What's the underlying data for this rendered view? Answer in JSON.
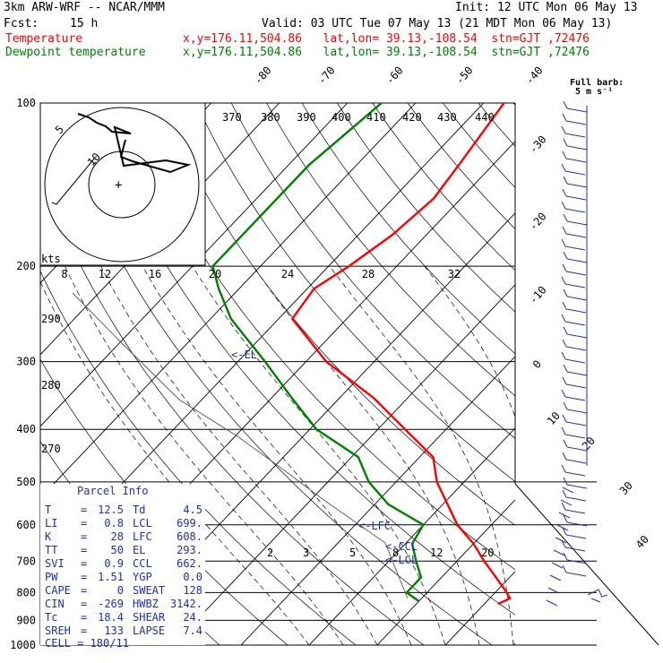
{
  "header": {
    "model": "3km ARW-WRF -- NCAR/MMM",
    "init": "Init: 12 UTC Mon 06 May 13",
    "fcst_label": "Fcst:",
    "fcst_value": "15 h",
    "valid": "Valid: 03 UTC Tue 07 May 13 (21 MDT Mon 06 May 13)",
    "temp_label": "Temperature",
    "temp_loc": "x,y=176.11,504.86   lat,lon= 39.13,-108.54  stn=GJT ,72476",
    "dew_label": "Dewpoint temperature",
    "dew_loc": "x,y=176.11,504.86   lat,lon= 39.13,-108.54  stn=GJT ,72476",
    "barb_key_1": "Full barb:",
    "barb_key_2": "5 m s⁻¹"
  },
  "colors": {
    "temperature": "#ff0000",
    "dewpoint": "#008000",
    "text": "#000000",
    "parcel_panel": "#1f2fb0"
  },
  "chart_data": {
    "type": "line",
    "title": "",
    "y_scale": "log-pressure",
    "pressure_ticks": [
      "100",
      "200",
      "300",
      "400",
      "500",
      "600",
      "700",
      "800",
      "900",
      "1000"
    ],
    "isotherm_labels": [
      "-80",
      "-70",
      "-60",
      "-50",
      "-40",
      "-30",
      "-20",
      "-10",
      "0",
      "10",
      "20",
      "30",
      "40"
    ],
    "theta_labels": [
      "370",
      "380",
      "390",
      "400",
      "410",
      "420",
      "430",
      "440",
      "290",
      "280",
      "270"
    ],
    "mixing_ratio_labels": [
      "2",
      "3",
      "5",
      "8",
      "12",
      "20"
    ],
    "hodograph_axis_labels": [
      "8",
      "12",
      "16",
      "20",
      "24",
      "28",
      "32"
    ],
    "hodograph_ring_labels": [
      "5",
      "10"
    ],
    "hodograph_unit": "kts",
    "annotations": [
      "<-EL",
      "<-LFC",
      "<-CCL",
      "<-LCL"
    ],
    "series": [
      {
        "name": "Temperature",
        "color": "#ff0000",
        "points": [
          {
            "p": 100,
            "t": -57
          },
          {
            "p": 130,
            "t": -55
          },
          {
            "p": 150,
            "t": -54
          },
          {
            "p": 175,
            "t": -55
          },
          {
            "p": 200,
            "t": -57
          },
          {
            "p": 220,
            "t": -59
          },
          {
            "p": 250,
            "t": -58
          },
          {
            "p": 300,
            "t": -47
          },
          {
            "p": 350,
            "t": -35
          },
          {
            "p": 400,
            "t": -26
          },
          {
            "p": 450,
            "t": -18
          },
          {
            "p": 500,
            "t": -14
          },
          {
            "p": 600,
            "t": -5
          },
          {
            "p": 650,
            "t": 0
          },
          {
            "p": 700,
            "t": 4
          },
          {
            "p": 750,
            "t": 8
          },
          {
            "p": 790,
            "t": 11
          },
          {
            "p": 820,
            "t": 13
          },
          {
            "p": 840,
            "t": 12
          }
        ]
      },
      {
        "name": "Dewpoint temperature",
        "color": "#008000",
        "points": [
          {
            "p": 100,
            "t": -75
          },
          {
            "p": 130,
            "t": -77
          },
          {
            "p": 160,
            "t": -77
          },
          {
            "p": 185,
            "t": -77
          },
          {
            "p": 200,
            "t": -77
          },
          {
            "p": 220,
            "t": -73
          },
          {
            "p": 250,
            "t": -67
          },
          {
            "p": 300,
            "t": -56
          },
          {
            "p": 350,
            "t": -47
          },
          {
            "p": 400,
            "t": -39
          },
          {
            "p": 450,
            "t": -29
          },
          {
            "p": 500,
            "t": -24
          },
          {
            "p": 550,
            "t": -18
          },
          {
            "p": 600,
            "t": -10
          },
          {
            "p": 650,
            "t": -9
          },
          {
            "p": 700,
            "t": -6
          },
          {
            "p": 750,
            "t": -3
          },
          {
            "p": 800,
            "t": -3
          },
          {
            "p": 830,
            "t": 0
          }
        ]
      }
    ]
  },
  "parcel_info": {
    "title": "Parcel Info",
    "rows": [
      {
        "left_label": "T",
        "left_value": "12.5",
        "right_label": "Td",
        "right_value": "4.5"
      },
      {
        "left_label": "LI",
        "left_value": "0.8",
        "right_label": "LCL",
        "right_value": "699."
      },
      {
        "left_label": "K",
        "left_value": "28",
        "right_label": "LFC",
        "right_value": "608."
      },
      {
        "left_label": "TT",
        "left_value": "50",
        "right_label": "EL",
        "right_value": "293."
      },
      {
        "left_label": "SVI",
        "left_value": "0.9",
        "right_label": "CCL",
        "right_value": "662."
      },
      {
        "left_label": "PW",
        "left_value": "1.51",
        "right_label": "YGP",
        "right_value": "0.0"
      },
      {
        "left_label": "CAPE",
        "left_value": "0",
        "right_label": "SWEAT",
        "right_value": "128"
      },
      {
        "left_label": "CIN",
        "left_value": "-269",
        "right_label": "HWBZ",
        "right_value": "3142."
      },
      {
        "left_label": "Tc",
        "left_value": "18.4",
        "right_label": "SHEAR",
        "right_value": "24."
      },
      {
        "left_label": "SREH",
        "left_value": "133",
        "right_label": "LAPSE",
        "right_value": "7.4"
      }
    ],
    "cell_label": "CELL",
    "cell_value": "180/11"
  }
}
